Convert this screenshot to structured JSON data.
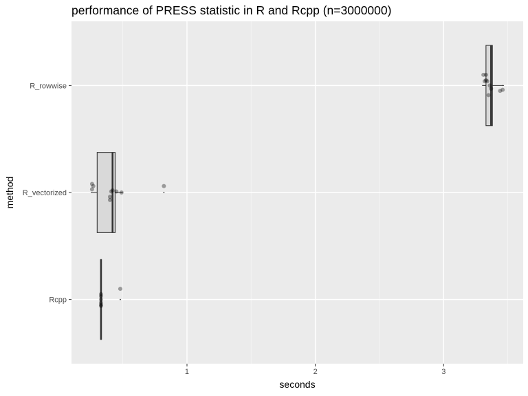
{
  "chart_data": {
    "type": "boxplot",
    "title": "performance of PRESS statistic in R and Rcpp (n=3000000)",
    "xlabel": "seconds",
    "ylabel": "method",
    "xlim": [
      0.1,
      3.62
    ],
    "x_ticks": [
      1,
      2,
      3
    ],
    "categories": [
      "Rcpp",
      "R_vectorized",
      "R_rowwise"
    ],
    "grid": true,
    "background": "#EBEBEB",
    "box_fill": "#D9D9D9",
    "boxes": [
      {
        "category": "Rcpp",
        "min": 0.33,
        "q1": 0.33,
        "median": 0.33,
        "q3": 0.33,
        "max": 0.33,
        "outliers": [
          0.48
        ],
        "mean": 0.48
      },
      {
        "category": "R_vectorized",
        "min": 0.25,
        "q1": 0.3,
        "median": 0.42,
        "q3": 0.44,
        "max": 0.5,
        "outliers": [
          0.82
        ],
        "mean": 0.82
      },
      {
        "category": "R_rowwise",
        "min": 3.3,
        "q1": 3.33,
        "median": 3.37,
        "q3": 3.38,
        "max": 3.47,
        "outliers": [],
        "mean": 3.46
      }
    ],
    "points": [
      {
        "category": "Rcpp",
        "values": [
          0.33,
          0.33,
          0.33,
          0.33,
          0.33,
          0.33,
          0.48
        ],
        "offsets": [
          0.05,
          -0.03,
          -0.05,
          0.0,
          0.03,
          -0.06,
          0.1
        ]
      },
      {
        "category": "R_vectorized",
        "values": [
          0.26,
          0.26,
          0.27,
          0.4,
          0.41,
          0.42,
          0.4,
          0.45,
          0.49,
          0.82
        ],
        "offsets": [
          0.08,
          0.03,
          0.06,
          -0.07,
          0.01,
          0.02,
          -0.04,
          0.01,
          0.0,
          0.06
        ]
      },
      {
        "category": "R_rowwise",
        "values": [
          3.31,
          3.33,
          3.34,
          3.35,
          3.36,
          3.37,
          3.44,
          3.46,
          3.33,
          3.32
        ],
        "offsets": [
          0.1,
          0.1,
          0.04,
          -0.09,
          0.0,
          -0.03,
          -0.05,
          -0.04,
          0.05,
          0.04
        ]
      }
    ]
  }
}
